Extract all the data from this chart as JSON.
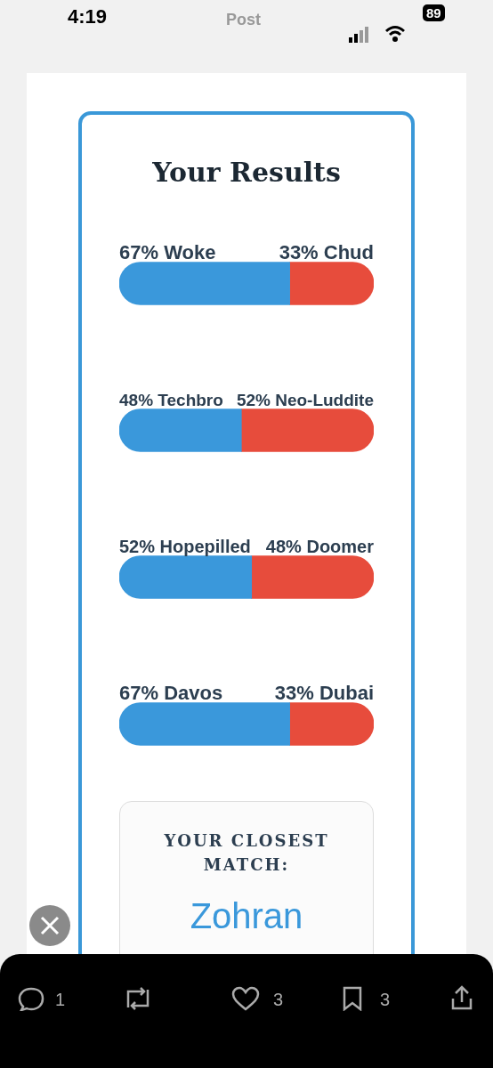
{
  "chart_data": [
    {
      "type": "bar",
      "title": "Your Results",
      "orientation": "horizontal",
      "stacked": true,
      "categories": [
        null,
        null,
        null,
        null
      ],
      "series": [
        {
          "color": "#3a98db",
          "values": [
            67,
            48,
            52,
            67
          ],
          "value_labels": [
            "67% Woke",
            "48% Techbro",
            "52% Hopepilled",
            "67% Davos"
          ]
        },
        {
          "color": "#e74c3c",
          "values": [
            33,
            52,
            48,
            33
          ],
          "value_labels": [
            "33% Chud",
            "52% Neo-Luddite",
            "48% Doomer",
            "33% Dubai"
          ]
        }
      ]
    },
    {
      "type": "other",
      "title": "YOUR CLOSEST MATCH:",
      "annotations": [
        "Zohran"
      ]
    },
    {
      "type": "other",
      "annotations": [
        "4:19",
        "Post",
        "89",
        "1",
        "3",
        "3"
      ]
    }
  ]
}
